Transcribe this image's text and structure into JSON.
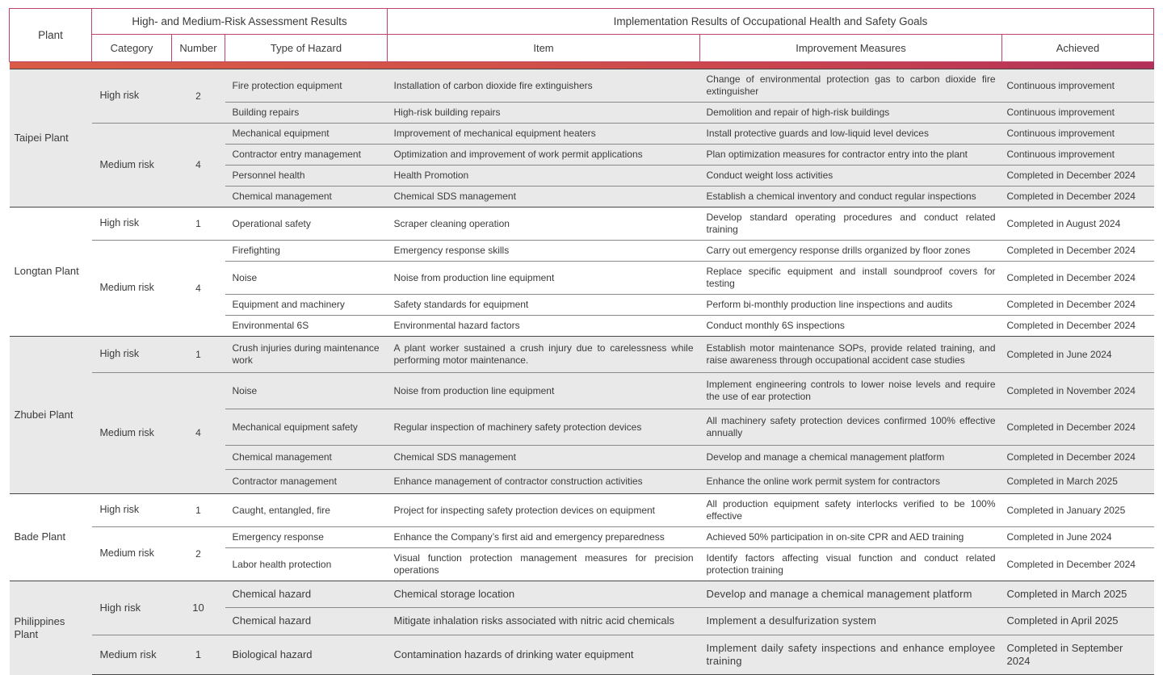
{
  "colors": {
    "accent_bar_left": "#d95b45",
    "accent_bar_right": "#b23059",
    "header_border": "#c0436a",
    "group_shade": "#e9e9e9",
    "row_separator": "#8a8a8a",
    "group_separator": "#474747",
    "text": "#3b3b3b"
  },
  "table": {
    "header": {
      "plant": "Plant",
      "group_assessment": "High- and Medium-Risk Assessment Results",
      "group_implementation": "Implementation Results of Occupational Health and Safety Goals",
      "columns": {
        "category": "Category",
        "number": "Number",
        "type_of_hazard": "Type of Hazard",
        "item": "Item",
        "improvement_measures": "Improvement Measures",
        "achieved": "Achieved"
      }
    },
    "groups": [
      {
        "plant": "Taipei Plant",
        "shaded": true,
        "blocks": [
          {
            "category": "High risk",
            "number": "2",
            "rows": [
              {
                "hazard": "Fire protection equipment",
                "item": "Installation of carbon dioxide fire extinguishers",
                "measures": "Change of environmental protection gas to carbon dioxide fire extinguisher",
                "achieved": "Continuous improvement"
              },
              {
                "hazard": "Building repairs",
                "item": "High-risk building repairs",
                "measures": "Demolition and repair of high-risk buildings",
                "achieved": "Continuous improvement"
              }
            ]
          },
          {
            "category": "Medium risk",
            "number": "4",
            "rows": [
              {
                "hazard": "Mechanical equipment",
                "item": "Improvement of mechanical equipment heaters",
                "measures": "Install protective guards and low-liquid level devices",
                "achieved": "Continuous improvement"
              },
              {
                "hazard": "Contractor entry management",
                "item": "Optimization and improvement of work permit applications",
                "measures": "Plan optimization measures for contractor entry into the plant",
                "achieved": "Continuous improvement"
              },
              {
                "hazard": "Personnel health",
                "item": "Health Promotion",
                "measures": "Conduct weight loss activities",
                "achieved": "Completed in December 2024"
              },
              {
                "hazard": "Chemical management",
                "item": "Chemical SDS management",
                "measures": "Establish a chemical inventory and conduct regular inspections",
                "achieved": "Completed in December 2024"
              }
            ]
          }
        ]
      },
      {
        "plant": "Longtan Plant",
        "shaded": false,
        "blocks": [
          {
            "category": "High risk",
            "number": "1",
            "rows": [
              {
                "hazard": "Operational safety",
                "item": "Scraper cleaning operation",
                "measures": "Develop standard operating procedures and conduct related training",
                "achieved": "Completed in August 2024"
              }
            ]
          },
          {
            "category": "Medium risk",
            "number": "4",
            "rows": [
              {
                "hazard": "Firefighting",
                "item": "Emergency response skills",
                "measures": "Carry out emergency response drills organized by floor zones",
                "achieved": "Completed in December 2024"
              },
              {
                "hazard": "Noise",
                "item": "Noise from production line equipment",
                "measures": "Replace specific equipment and install soundproof covers for testing",
                "achieved": "Completed in December 2024"
              },
              {
                "hazard": "Equipment and machinery",
                "item": "Safety standards for equipment",
                "measures": "Perform bi-monthly production line inspections and audits",
                "achieved": "Completed in December 2024"
              },
              {
                "hazard": "Environmental 6S",
                "item": "Environmental hazard factors",
                "measures": "Conduct monthly 6S inspections",
                "achieved": "Completed in December 2024"
              }
            ]
          }
        ]
      },
      {
        "plant": "Zhubei Plant",
        "shaded": true,
        "blocks": [
          {
            "category": "High risk",
            "number": "1",
            "rows": [
              {
                "hazard": "Crush injuries during maintenance work",
                "item": "A plant worker sustained a crush injury due to carelessness while performing motor maintenance.",
                "measures": "Establish motor maintenance SOPs, provide related training, and raise awareness through occupational accident case studies",
                "achieved": "Completed in June 2024"
              }
            ]
          },
          {
            "category": "Medium risk",
            "number": "4",
            "rows": [
              {
                "hazard": "Noise",
                "item": "Noise from production line equipment",
                "measures": "Implement engineering controls to lower noise levels and require the use of ear protection",
                "achieved": "Completed in November 2024"
              },
              {
                "hazard": "Mechanical equipment safety",
                "item": "Regular inspection of machinery safety protection devices",
                "measures": "All machinery safety protection devices confirmed 100% effective annually",
                "achieved": "Completed in December 2024"
              },
              {
                "hazard": "Chemical management",
                "item": "Chemical SDS management",
                "measures": "Develop and manage a chemical management platform",
                "achieved": "Completed in December 2024"
              },
              {
                "hazard": "Contractor management",
                "item": "Enhance management of contractor construction activities",
                "measures": "Enhance the online work permit system for contractors",
                "achieved": "Completed in March 2025"
              }
            ]
          }
        ]
      },
      {
        "plant": "Bade Plant",
        "shaded": false,
        "blocks": [
          {
            "category": "High risk",
            "number": "1",
            "rows": [
              {
                "hazard": "Caught, entangled, fire",
                "item": "Project for inspecting safety protection devices on equipment",
                "measures": "All production equipment safety interlocks verified to be 100% effective",
                "achieved": "Completed in January 2025"
              }
            ]
          },
          {
            "category": "Medium risk",
            "number": "2",
            "rows": [
              {
                "hazard": "Emergency response",
                "item": "Enhance the Company’s first aid and emergency preparedness",
                "measures": "Achieved 50% participation in on-site CPR and AED training",
                "achieved": "Completed in June 2024"
              },
              {
                "hazard": "Labor health protection",
                "item": "Visual function protection management measures for precision operations",
                "measures": "Identify factors affecting visual function and conduct related protection training",
                "achieved": "Completed in December 2024"
              }
            ]
          }
        ]
      },
      {
        "plant": "Philippines Plant",
        "shaded": true,
        "blocks": [
          {
            "category": "High risk",
            "number": "10",
            "rows": [
              {
                "hazard": "Chemical hazard",
                "item": "Chemical storage location",
                "measures": "Develop and manage a chemical management platform",
                "achieved": "Completed in March 2025"
              },
              {
                "hazard": "Chemical hazard",
                "item": "Mitigate inhalation risks associated with nitric acid chemicals",
                "measures": "Implement a desulfurization system",
                "achieved": "Completed in April 2025"
              }
            ]
          },
          {
            "category": "Medium risk",
            "number": "1",
            "rows": [
              {
                "hazard": "Biological hazard",
                "item": "Contamination hazards of drinking water equipment",
                "measures": "Implement daily safety inspections and enhance employee training",
                "achieved": "Completed in September 2024"
              }
            ]
          }
        ]
      }
    ]
  }
}
